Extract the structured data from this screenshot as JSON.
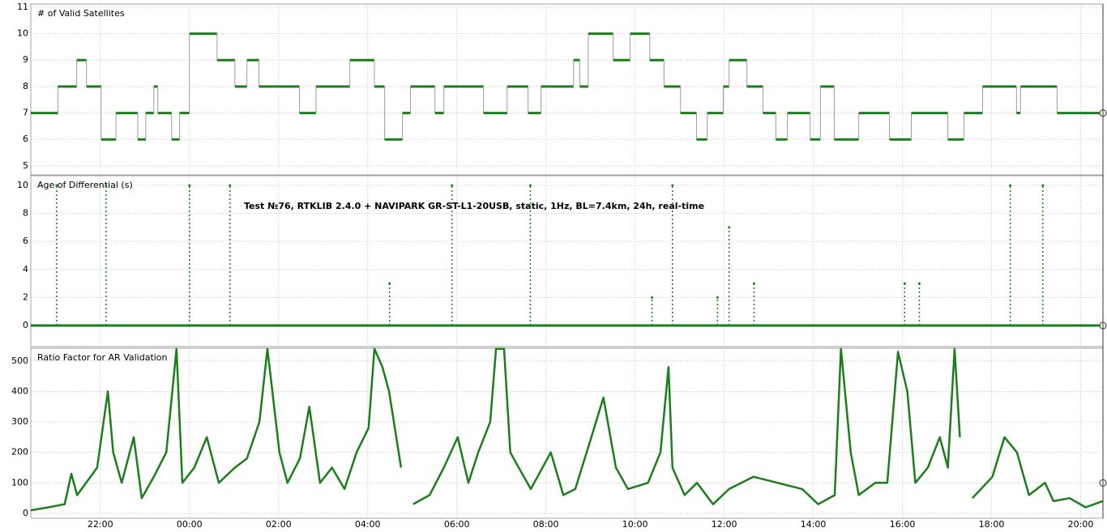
{
  "chart_data": [
    {
      "type": "step",
      "title": "# of Valid Satellites",
      "color": "#1a7f1a",
      "xlim": [
        0.44,
        24.5
      ],
      "ylim": [
        4.66,
        11.12
      ],
      "yticks": [
        5,
        6,
        7,
        8,
        9,
        10,
        11
      ],
      "x": [
        0.44,
        1.05,
        1.47,
        1.69,
        2.02,
        2.35,
        2.84,
        3.02,
        3.2,
        3.29,
        3.6,
        3.78,
        4.0,
        4.62,
        5.02,
        5.29,
        5.56,
        6.47,
        6.84,
        7.29,
        7.6,
        8.15,
        8.38,
        8.78,
        8.96,
        9.51,
        9.71,
        10.6,
        11.13,
        11.6,
        11.89,
        12.62,
        12.76,
        12.95,
        13.51,
        13.89,
        14.33,
        14.65,
        15.02,
        15.38,
        15.62,
        15.98,
        16.11,
        16.51,
        16.87,
        17.16,
        17.42,
        17.93,
        18.16,
        18.47,
        19.02,
        19.71,
        20.2,
        21.02,
        21.38,
        21.8,
        22.56,
        22.65,
        23.47
      ],
      "values": [
        7,
        8,
        9,
        8,
        6,
        7,
        6,
        7,
        8,
        7,
        6,
        7,
        10,
        9,
        8,
        9,
        8,
        7,
        8,
        8,
        9,
        8,
        6,
        7,
        8,
        7,
        8,
        7,
        8,
        7,
        8,
        9,
        8,
        10,
        9,
        10,
        9,
        8,
        7,
        6,
        7,
        8,
        9,
        8,
        7,
        6,
        7,
        6,
        8,
        6,
        7,
        6,
        7,
        6,
        7,
        8,
        7,
        8,
        7
      ]
    },
    {
      "type": "stem",
      "title": "Age of Differential (s)",
      "color": "#1a7f1a",
      "annotation": "Test №76, RTKLIB 2.4.0 + NAVIPARK GR-ST-L1-20USB, static, 1Hz, BL=7.4km, 24h, real-time",
      "xlim": [
        0.44,
        24.5
      ],
      "ylim": [
        -1.5,
        10.69
      ],
      "yticks": [
        0,
        2,
        4,
        6,
        8,
        10
      ],
      "x": [
        1.02,
        2.13,
        4.0,
        4.91,
        8.49,
        9.89,
        11.65,
        14.38,
        14.84,
        15.85,
        16.11,
        16.67,
        20.05,
        20.38,
        22.42,
        23.15
      ],
      "values": [
        10,
        10,
        10,
        10,
        3,
        10,
        10,
        2,
        10,
        2,
        7,
        3,
        3,
        3,
        10,
        10
      ]
    },
    {
      "type": "line",
      "title": "Ratio Factor for AR Validation",
      "color": "#1a7f1a",
      "xlim": [
        0.44,
        24.5
      ],
      "ylim": [
        -16,
        542
      ],
      "yticks": [
        0,
        100,
        200,
        300,
        400,
        500
      ],
      "xticks": [
        {
          "value": 2,
          "label": "22:00"
        },
        {
          "value": 4,
          "label": "00:00"
        },
        {
          "value": 6,
          "label": "02:00"
        },
        {
          "value": 8,
          "label": "04:00"
        },
        {
          "value": 10,
          "label": "06:00"
        },
        {
          "value": 12,
          "label": "08:00"
        },
        {
          "value": 14,
          "label": "10:00"
        },
        {
          "value": 16,
          "label": "12:00"
        },
        {
          "value": 18,
          "label": "14:00"
        },
        {
          "value": 20,
          "label": "16:00"
        },
        {
          "value": 22,
          "label": "18:00"
        },
        {
          "value": 24,
          "label": "20:00"
        }
      ],
      "x": [
        0.44,
        0.84,
        1.2,
        1.35,
        1.48,
        1.93,
        2.17,
        2.29,
        2.48,
        2.75,
        2.93,
        3.2,
        3.48,
        3.71,
        3.84,
        4.11,
        4.39,
        4.66,
        5.02,
        5.29,
        5.57,
        5.75,
        6.02,
        6.2,
        6.48,
        6.69,
        6.93,
        7.2,
        7.48,
        7.75,
        8.02,
        8.15,
        8.33,
        8.48,
        8.75,
        8.85,
        9.02,
        9.39,
        9.71,
        10.02,
        10.26,
        10.48,
        10.75,
        10.88,
        11.06,
        11.2,
        11.39,
        11.66,
        12.11,
        12.39,
        12.66,
        13.02,
        13.29,
        13.57,
        13.84,
        14.29,
        14.57,
        14.75,
        14.84,
        15.11,
        15.39,
        15.75,
        16.11,
        16.66,
        17.2,
        17.75,
        18.11,
        18.48,
        18.62,
        18.84,
        19.02,
        19.39,
        19.66,
        19.9,
        20.11,
        20.29,
        20.57,
        20.84,
        21.02,
        21.17,
        21.29,
        21.35,
        21.57,
        22.02,
        22.29,
        22.57,
        22.84,
        23.2,
        23.39,
        23.75,
        24.11,
        24.49
      ],
      "values": [
        10,
        20,
        30,
        130,
        60,
        150,
        400,
        200,
        100,
        250,
        50,
        120,
        200,
        540,
        100,
        150,
        250,
        100,
        150,
        180,
        300,
        540,
        200,
        100,
        180,
        350,
        100,
        150,
        80,
        200,
        280,
        540,
        480,
        400,
        150,
        null,
        30,
        60,
        150,
        250,
        100,
        200,
        300,
        540,
        540,
        200,
        150,
        80,
        200,
        60,
        80,
        250,
        380,
        150,
        80,
        100,
        200,
        480,
        150,
        60,
        100,
        30,
        80,
        120,
        100,
        80,
        30,
        60,
        540,
        200,
        60,
        100,
        100,
        530,
        400,
        100,
        150,
        250,
        150,
        540,
        250,
        null,
        50,
        120,
        250,
        200,
        60,
        100,
        40,
        50,
        20,
        40
      ]
    }
  ]
}
